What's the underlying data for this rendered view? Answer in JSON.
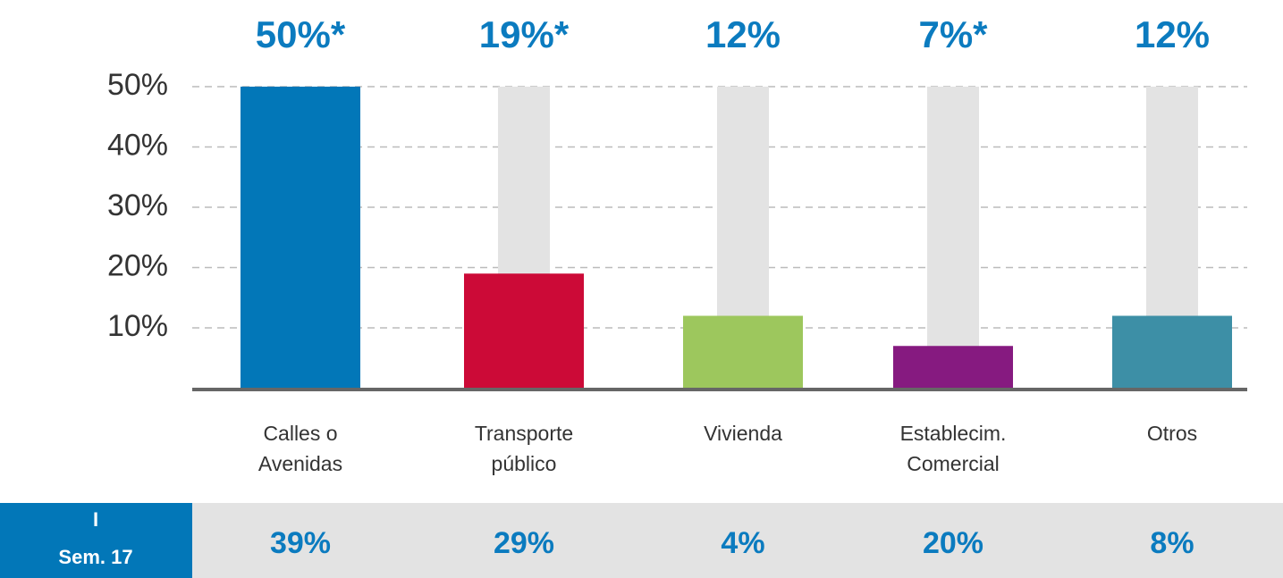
{
  "chart_data": {
    "type": "bar",
    "categories": [
      "Calles o Avenidas",
      "Transporte público",
      "Vivienda",
      "Establecim. Comercial",
      "Otros"
    ],
    "values": [
      50,
      19,
      12,
      7,
      12
    ],
    "value_labels": [
      "50%*",
      "19%*",
      "12%",
      "7%*",
      "12%"
    ],
    "colors": [
      "#0277b8",
      "#cc0a37",
      "#9dc75d",
      "#861a80",
      "#3d8fa6"
    ],
    "ylim": [
      0,
      50
    ],
    "yticks": [
      {
        "value": 10,
        "label": "10%"
      },
      {
        "value": 20,
        "label": "20%"
      },
      {
        "value": 30,
        "label": "30%"
      },
      {
        "value": 40,
        "label": "40%"
      },
      {
        "value": 50,
        "label": "50%"
      }
    ],
    "grid": true,
    "comparison": {
      "label_lines": [
        "I",
        "Sem. 17"
      ],
      "values": [
        39,
        29,
        4,
        20,
        8
      ],
      "value_labels": [
        "39%",
        "29%",
        "4%",
        "20%",
        "8%"
      ]
    }
  }
}
